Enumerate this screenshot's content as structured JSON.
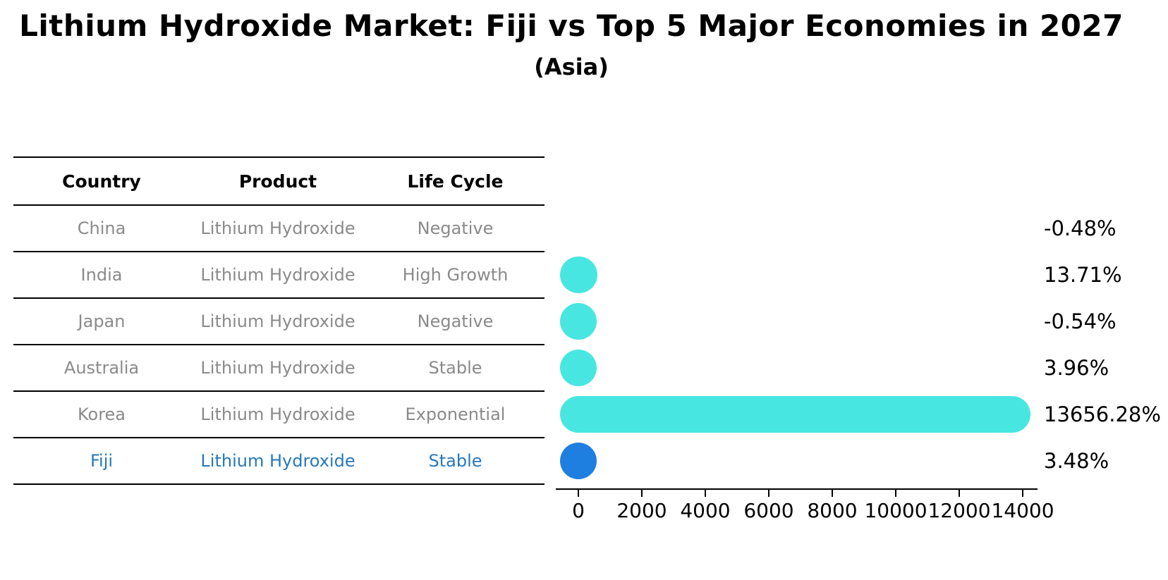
{
  "title": "Lithium Hydroxide Market: Fiji vs Top 5 Major Economies in 2027",
  "subtitle": "(Asia)",
  "table": {
    "headers": [
      "Country",
      "Product",
      "Life Cycle"
    ],
    "rows": [
      {
        "country": "China",
        "product": "Lithium Hydroxide",
        "life_cycle": "Negative",
        "highlighted": false
      },
      {
        "country": "India",
        "product": "Lithium Hydroxide",
        "life_cycle": "High Growth",
        "highlighted": false
      },
      {
        "country": "Japan",
        "product": "Lithium Hydroxide",
        "life_cycle": "Negative",
        "highlighted": false
      },
      {
        "country": "Australia",
        "product": "Lithium Hydroxide",
        "life_cycle": "Stable",
        "highlighted": false
      },
      {
        "country": "Korea",
        "product": "Lithium Hydroxide",
        "life_cycle": "Exponential",
        "highlighted": false
      },
      {
        "country": "Fiji",
        "product": "Lithium Hydroxide",
        "life_cycle": "Stable",
        "highlighted": true
      }
    ]
  },
  "chart_data": {
    "type": "bar",
    "orientation": "horizontal",
    "title": "Lithium Hydroxide Market: Fiji vs Top 5 Major Economies in 2027",
    "subtitle": "(Asia)",
    "categories": [
      "China",
      "India",
      "Japan",
      "Australia",
      "Korea",
      "Fiji"
    ],
    "values": [
      -0.48,
      13.71,
      -0.54,
      3.96,
      13656.28,
      3.48
    ],
    "value_labels": [
      "-0.48%",
      "13.71%",
      "-0.54%",
      "3.96%",
      "13656.28%",
      "3.48%"
    ],
    "marker_visible": [
      false,
      true,
      true,
      true,
      true,
      true
    ],
    "highlight_index": 5,
    "xlabel": "",
    "ylabel": "",
    "xlim": [
      0,
      14000
    ],
    "xticks": [
      0,
      2000,
      4000,
      6000,
      8000,
      10000,
      12000,
      14000
    ],
    "grid": "off",
    "legend": "none",
    "colors": {
      "bar": "#47e6e1",
      "highlight_bar": "#1e7fe1",
      "highlight_text": "#2678be",
      "muted_text": "#8a8a8a",
      "axis": "#000000"
    }
  }
}
